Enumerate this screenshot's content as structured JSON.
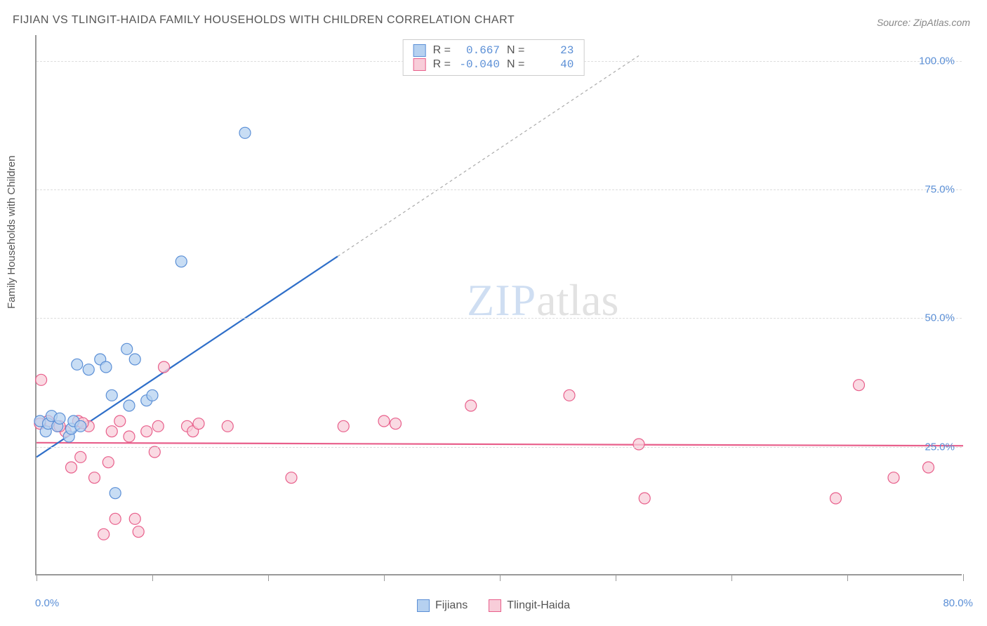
{
  "title": "FIJIAN VS TLINGIT-HAIDA FAMILY HOUSEHOLDS WITH CHILDREN CORRELATION CHART",
  "source": "Source: ZipAtlas.com",
  "y_axis_label": "Family Households with Children",
  "watermark_zip": "ZIP",
  "watermark_atlas": "atlas",
  "chart": {
    "type": "scatter",
    "background_color": "#ffffff",
    "grid_color": "#dddddd",
    "axis_color": "#999999",
    "xlim": [
      0,
      80
    ],
    "ylim": [
      0,
      105
    ],
    "x_ticks_minor": [
      0,
      10,
      20,
      30,
      40,
      50,
      60,
      70,
      80
    ],
    "x_labels": {
      "min": "0.0%",
      "max": "80.0%"
    },
    "y_ticks": [
      {
        "v": 25,
        "label": "25.0%"
      },
      {
        "v": 50,
        "label": "50.0%"
      },
      {
        "v": 75,
        "label": "75.0%"
      },
      {
        "v": 100,
        "label": "100.0%"
      }
    ],
    "marker_radius": 8,
    "marker_stroke_width": 1.2,
    "line_width": 2.2,
    "tick_label_color": "#5b8fd6",
    "tick_label_fontsize": 15
  },
  "series": {
    "fijians": {
      "label": "Fijians",
      "fill": "#b6d1f0",
      "stroke": "#5b8fd6",
      "line_color": "#2f6fc9",
      "r_value": "0.667",
      "n_value": "23",
      "points": [
        [
          0.3,
          30
        ],
        [
          0.8,
          28
        ],
        [
          1.0,
          29.5
        ],
        [
          1.3,
          31
        ],
        [
          1.8,
          29
        ],
        [
          2.0,
          30.5
        ],
        [
          2.8,
          27
        ],
        [
          3.0,
          28.5
        ],
        [
          3.2,
          30
        ],
        [
          3.5,
          41
        ],
        [
          3.8,
          29
        ],
        [
          4.5,
          40
        ],
        [
          5.5,
          42
        ],
        [
          6.0,
          40.5
        ],
        [
          6.5,
          35
        ],
        [
          6.8,
          16
        ],
        [
          7.8,
          44
        ],
        [
          8.0,
          33
        ],
        [
          8.5,
          42
        ],
        [
          9.5,
          34
        ],
        [
          10.0,
          35
        ],
        [
          12.5,
          61
        ],
        [
          18.0,
          86
        ]
      ],
      "trend": {
        "x1": 0,
        "y1": 23,
        "x2": 26,
        "y2": 62
      },
      "trend_extend": {
        "x1": 26,
        "y1": 62,
        "x2": 52,
        "y2": 101
      }
    },
    "tlingit": {
      "label": "Tlingit-Haida",
      "fill": "#f8cdd9",
      "stroke": "#e85f8b",
      "line_color": "#e85f8b",
      "r_value": "-0.040",
      "n_value": "40",
      "points": [
        [
          0.4,
          38
        ],
        [
          1.0,
          30
        ],
        [
          1.8,
          29
        ],
        [
          2.5,
          28
        ],
        [
          3.0,
          21
        ],
        [
          3.6,
          30
        ],
        [
          3.8,
          23
        ],
        [
          4.5,
          29
        ],
        [
          5.0,
          19
        ],
        [
          5.8,
          8
        ],
        [
          6.2,
          22
        ],
        [
          6.5,
          28
        ],
        [
          6.8,
          11
        ],
        [
          7.2,
          30
        ],
        [
          8.0,
          27
        ],
        [
          8.5,
          11
        ],
        [
          8.8,
          8.5
        ],
        [
          9.5,
          28
        ],
        [
          10.2,
          24
        ],
        [
          10.5,
          29
        ],
        [
          11.0,
          40.5
        ],
        [
          13.0,
          29
        ],
        [
          13.5,
          28
        ],
        [
          14.0,
          29.5
        ],
        [
          16.5,
          29
        ],
        [
          22.0,
          19
        ],
        [
          26.5,
          29
        ],
        [
          30.0,
          30
        ],
        [
          31.0,
          29.5
        ],
        [
          37.5,
          33
        ],
        [
          46.0,
          35
        ],
        [
          52.0,
          25.5
        ],
        [
          52.5,
          15
        ],
        [
          69.0,
          15
        ],
        [
          71.0,
          37
        ],
        [
          74.0,
          19
        ],
        [
          77.0,
          21
        ],
        [
          0.3,
          29.5
        ],
        [
          2.0,
          29
        ],
        [
          4.0,
          29.6
        ]
      ],
      "trend": {
        "x1": 0,
        "y1": 25.8,
        "x2": 80,
        "y2": 25.2
      }
    }
  },
  "legend_top": {
    "r_label": "R =",
    "n_label": "N ="
  }
}
